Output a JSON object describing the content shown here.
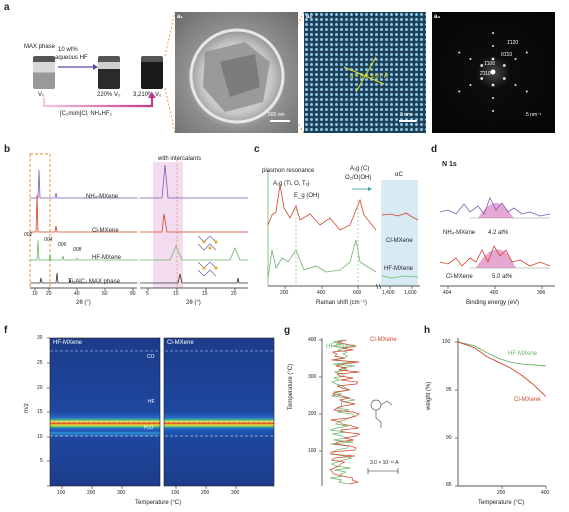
{
  "panels": {
    "a": "a",
    "b": "b",
    "c": "c",
    "d": "d",
    "f": "f",
    "g": "g",
    "h": "h"
  },
  "panel_a": {
    "max_phase": "MAX phase",
    "arrow_label_1": "10 wt%",
    "arrow_label_2": "aqueous HF",
    "v0": "V₀",
    "v220": "220% V₀",
    "v3210": "3,210% V₀",
    "bottom_label": "[C₂mim]Cl, NH₄HF₂",
    "a1": "a₁",
    "a2": "a₂",
    "a3": "a₃",
    "scale_a1": "500 nm",
    "scale_a2": "2 nm",
    "scale_a3": "5 nm⁻¹",
    "lattice": "a = b = 3.07 Å",
    "spots": [
      "1̄120",
      "01̄10",
      "1̄100",
      "2̄110"
    ]
  },
  "panel_b": {
    "title": "with intercalants",
    "traces": [
      "NH₄-MXene",
      "Cl-MXene",
      "HF-MXene",
      "Ti₃AlC₂ MAX phase"
    ],
    "peaks": [
      "002",
      "004",
      "006",
      "008"
    ],
    "xlabel": "2θ (°)",
    "xticks_left": [
      "10",
      "20",
      "40",
      "60",
      "80"
    ],
    "xticks_right": [
      "5",
      "10",
      "15",
      "20"
    ]
  },
  "panel_c": {
    "labels": [
      "plasmon resonance",
      "A₁g (Ti, O, Tₓ)",
      "E_g (OH)",
      "A₁g (C)",
      "O₂/O(OH)",
      "αC"
    ],
    "traces": [
      "Cl-MXene",
      "HF-MXene"
    ],
    "xlabel": "Raman shift (cm⁻¹)",
    "xticks": [
      "200",
      "400",
      "600",
      "1,400",
      "1,600"
    ]
  },
  "panel_d": {
    "title": "N 1s",
    "traces": [
      "NH₄-MXene",
      "Cl-MXene"
    ],
    "values": [
      "4.2 at%",
      "5.0 at%"
    ],
    "xlabel": "Binding energy (eV)",
    "xticks": [
      "404",
      "400",
      "396"
    ]
  },
  "panel_f": {
    "maps": [
      "HF-MXene",
      "Cl-MXene"
    ],
    "lines": [
      "CO",
      "HF",
      "H₂O"
    ],
    "ylabel": "m/z",
    "yticks": [
      "30",
      "25",
      "20",
      "15",
      "10",
      "5"
    ],
    "xticks": [
      "100",
      "200",
      "300",
      "100",
      "200",
      "300"
    ],
    "xlabel": "Temperature (°C)"
  },
  "panel_g": {
    "ylabel": "Temperature (°C)",
    "yticks": [
      "400",
      "300",
      "200",
      "100"
    ],
    "legend": [
      "HF-MXene",
      "Cl-MXene"
    ],
    "scale": "3.0 × 10⁻¹² A"
  },
  "panel_h": {
    "ylabel": "weight (%)",
    "xlabel": "Temperature (°C)",
    "yticks": [
      "100",
      "95",
      "90",
      "85"
    ],
    "xticks": [
      "200",
      "400"
    ],
    "legend": [
      "HF-MXene",
      "Cl-MXene"
    ]
  },
  "colors": {
    "purple": "#7b5bb5",
    "red": "#d0452b",
    "green": "#6db56a",
    "black": "#333333",
    "pink": "#e6a8d2"
  }
}
